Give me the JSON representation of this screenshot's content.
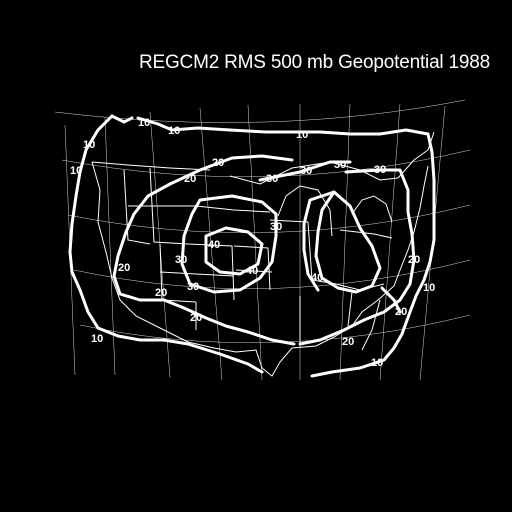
{
  "title": "REGCM2 RMS 500 mb Geopotential 1988",
  "colors": {
    "background": "#000000",
    "foreground": "#ffffff"
  },
  "contour_labels": [
    {
      "text": "10"
    },
    {
      "text": "10"
    },
    {
      "text": "10"
    },
    {
      "text": "10"
    },
    {
      "text": "10"
    },
    {
      "text": "10"
    },
    {
      "text": "10"
    },
    {
      "text": "10"
    },
    {
      "text": "20"
    },
    {
      "text": "20"
    },
    {
      "text": "20"
    },
    {
      "text": "20"
    },
    {
      "text": "20"
    },
    {
      "text": "20"
    },
    {
      "text": "20"
    },
    {
      "text": "20"
    },
    {
      "text": "30"
    },
    {
      "text": "30"
    },
    {
      "text": "30"
    },
    {
      "text": "30"
    },
    {
      "text": "30"
    },
    {
      "text": "30"
    },
    {
      "text": "30"
    },
    {
      "text": "40"
    },
    {
      "text": "40"
    },
    {
      "text": "40"
    }
  ]
}
